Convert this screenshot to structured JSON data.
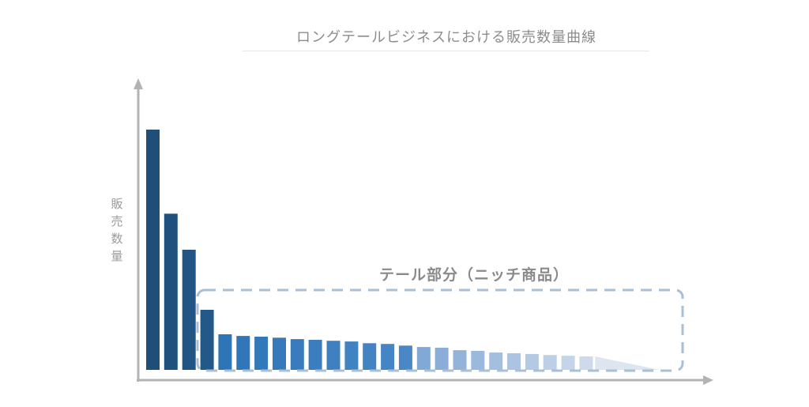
{
  "chart_data": {
    "type": "bar",
    "title": "ロングテールビジネスにおける販売数量曲線",
    "ylabel": "販売数量",
    "xlabel": "",
    "grid": false,
    "values": [
      100,
      65,
      50,
      25,
      14.8,
      14.1,
      13.8,
      13.4,
      12.8,
      12.5,
      12.1,
      11.8,
      11.1,
      10.8,
      10.1,
      9.5,
      9.2,
      8.2,
      7.9,
      7.2,
      6.9,
      6.6,
      6.2,
      5.9,
      5.6
    ],
    "tail_curve_end": 0,
    "tail_label": "テール部分（ニッチ商品）",
    "colors": {
      "head": "#1f4e79",
      "tail_start": "#2e75b6",
      "tail_end": "#d6e0ee",
      "axis": "#b3b3b3",
      "box": "#a8bfd6"
    }
  }
}
